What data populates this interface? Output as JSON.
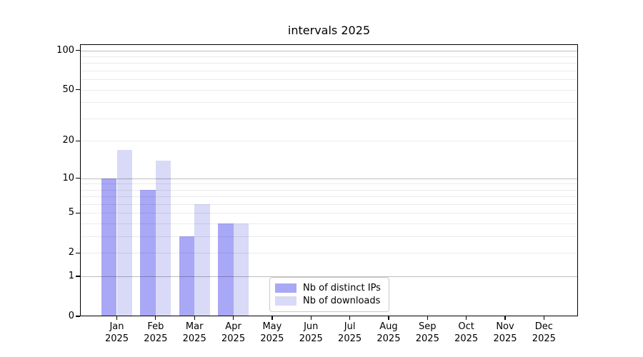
{
  "chart_data": {
    "type": "bar",
    "title": "intervals 2025",
    "scale": "log1p",
    "grid": true,
    "categories": [
      "Jan",
      "Feb",
      "Mar",
      "Apr",
      "May",
      "Jun",
      "Jul",
      "Aug",
      "Sep",
      "Oct",
      "Nov",
      "Dec"
    ],
    "year": "2025",
    "series": [
      {
        "name": "Nb of distinct IPs",
        "color": "#a8a8f6",
        "values": [
          10,
          8,
          3,
          4,
          0,
          0,
          0,
          0,
          0,
          0,
          0,
          0
        ]
      },
      {
        "name": "Nb of downloads",
        "color": "#d9d9f8",
        "values": [
          17,
          14,
          6,
          4,
          0,
          0,
          0,
          0,
          0,
          0,
          0,
          0
        ]
      }
    ],
    "y_ticks": [
      0,
      1,
      2,
      5,
      10,
      20,
      50,
      100
    ],
    "y_major_gridlines": [
      1,
      10,
      100
    ],
    "y_minor_gridlines": [
      2,
      3,
      4,
      5,
      6,
      7,
      8,
      9,
      20,
      30,
      40,
      50,
      60,
      70,
      80,
      90
    ],
    "ylim": [
      0,
      111.4
    ],
    "xlabel": "",
    "ylabel": "",
    "legend_position": "lower center inside"
  }
}
